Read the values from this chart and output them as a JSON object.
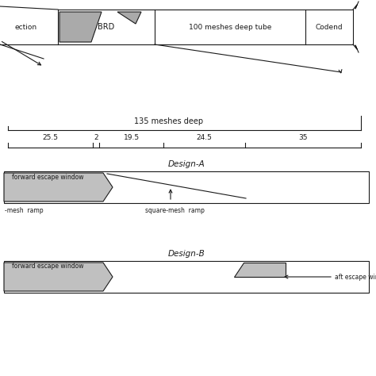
{
  "bg": "#ffffff",
  "lc": "#1a1a1a",
  "gray": "#aaaaaa",
  "fig_w": 4.74,
  "fig_h": 4.74,
  "dpi": 100,
  "sec_labels": [
    "ection",
    "BRD",
    "100 meshes deep tube",
    "Codend"
  ],
  "ruler_label": "135 meshes deep",
  "seg_labels": [
    "25.5",
    "2",
    "19.5",
    "24.5",
    "35"
  ],
  "seg_vals": [
    25.5,
    2.0,
    19.5,
    24.5,
    35.0
  ],
  "design_a_label": "Design-A",
  "design_a_fwd": "forward escape window",
  "design_a_ramp1": "-mesh  ramp",
  "design_a_ramp2": "square-mesh  ramp",
  "design_b_label": "Design-B",
  "design_b_fwd": "forward escape window",
  "design_b_aft": "aft escape window"
}
